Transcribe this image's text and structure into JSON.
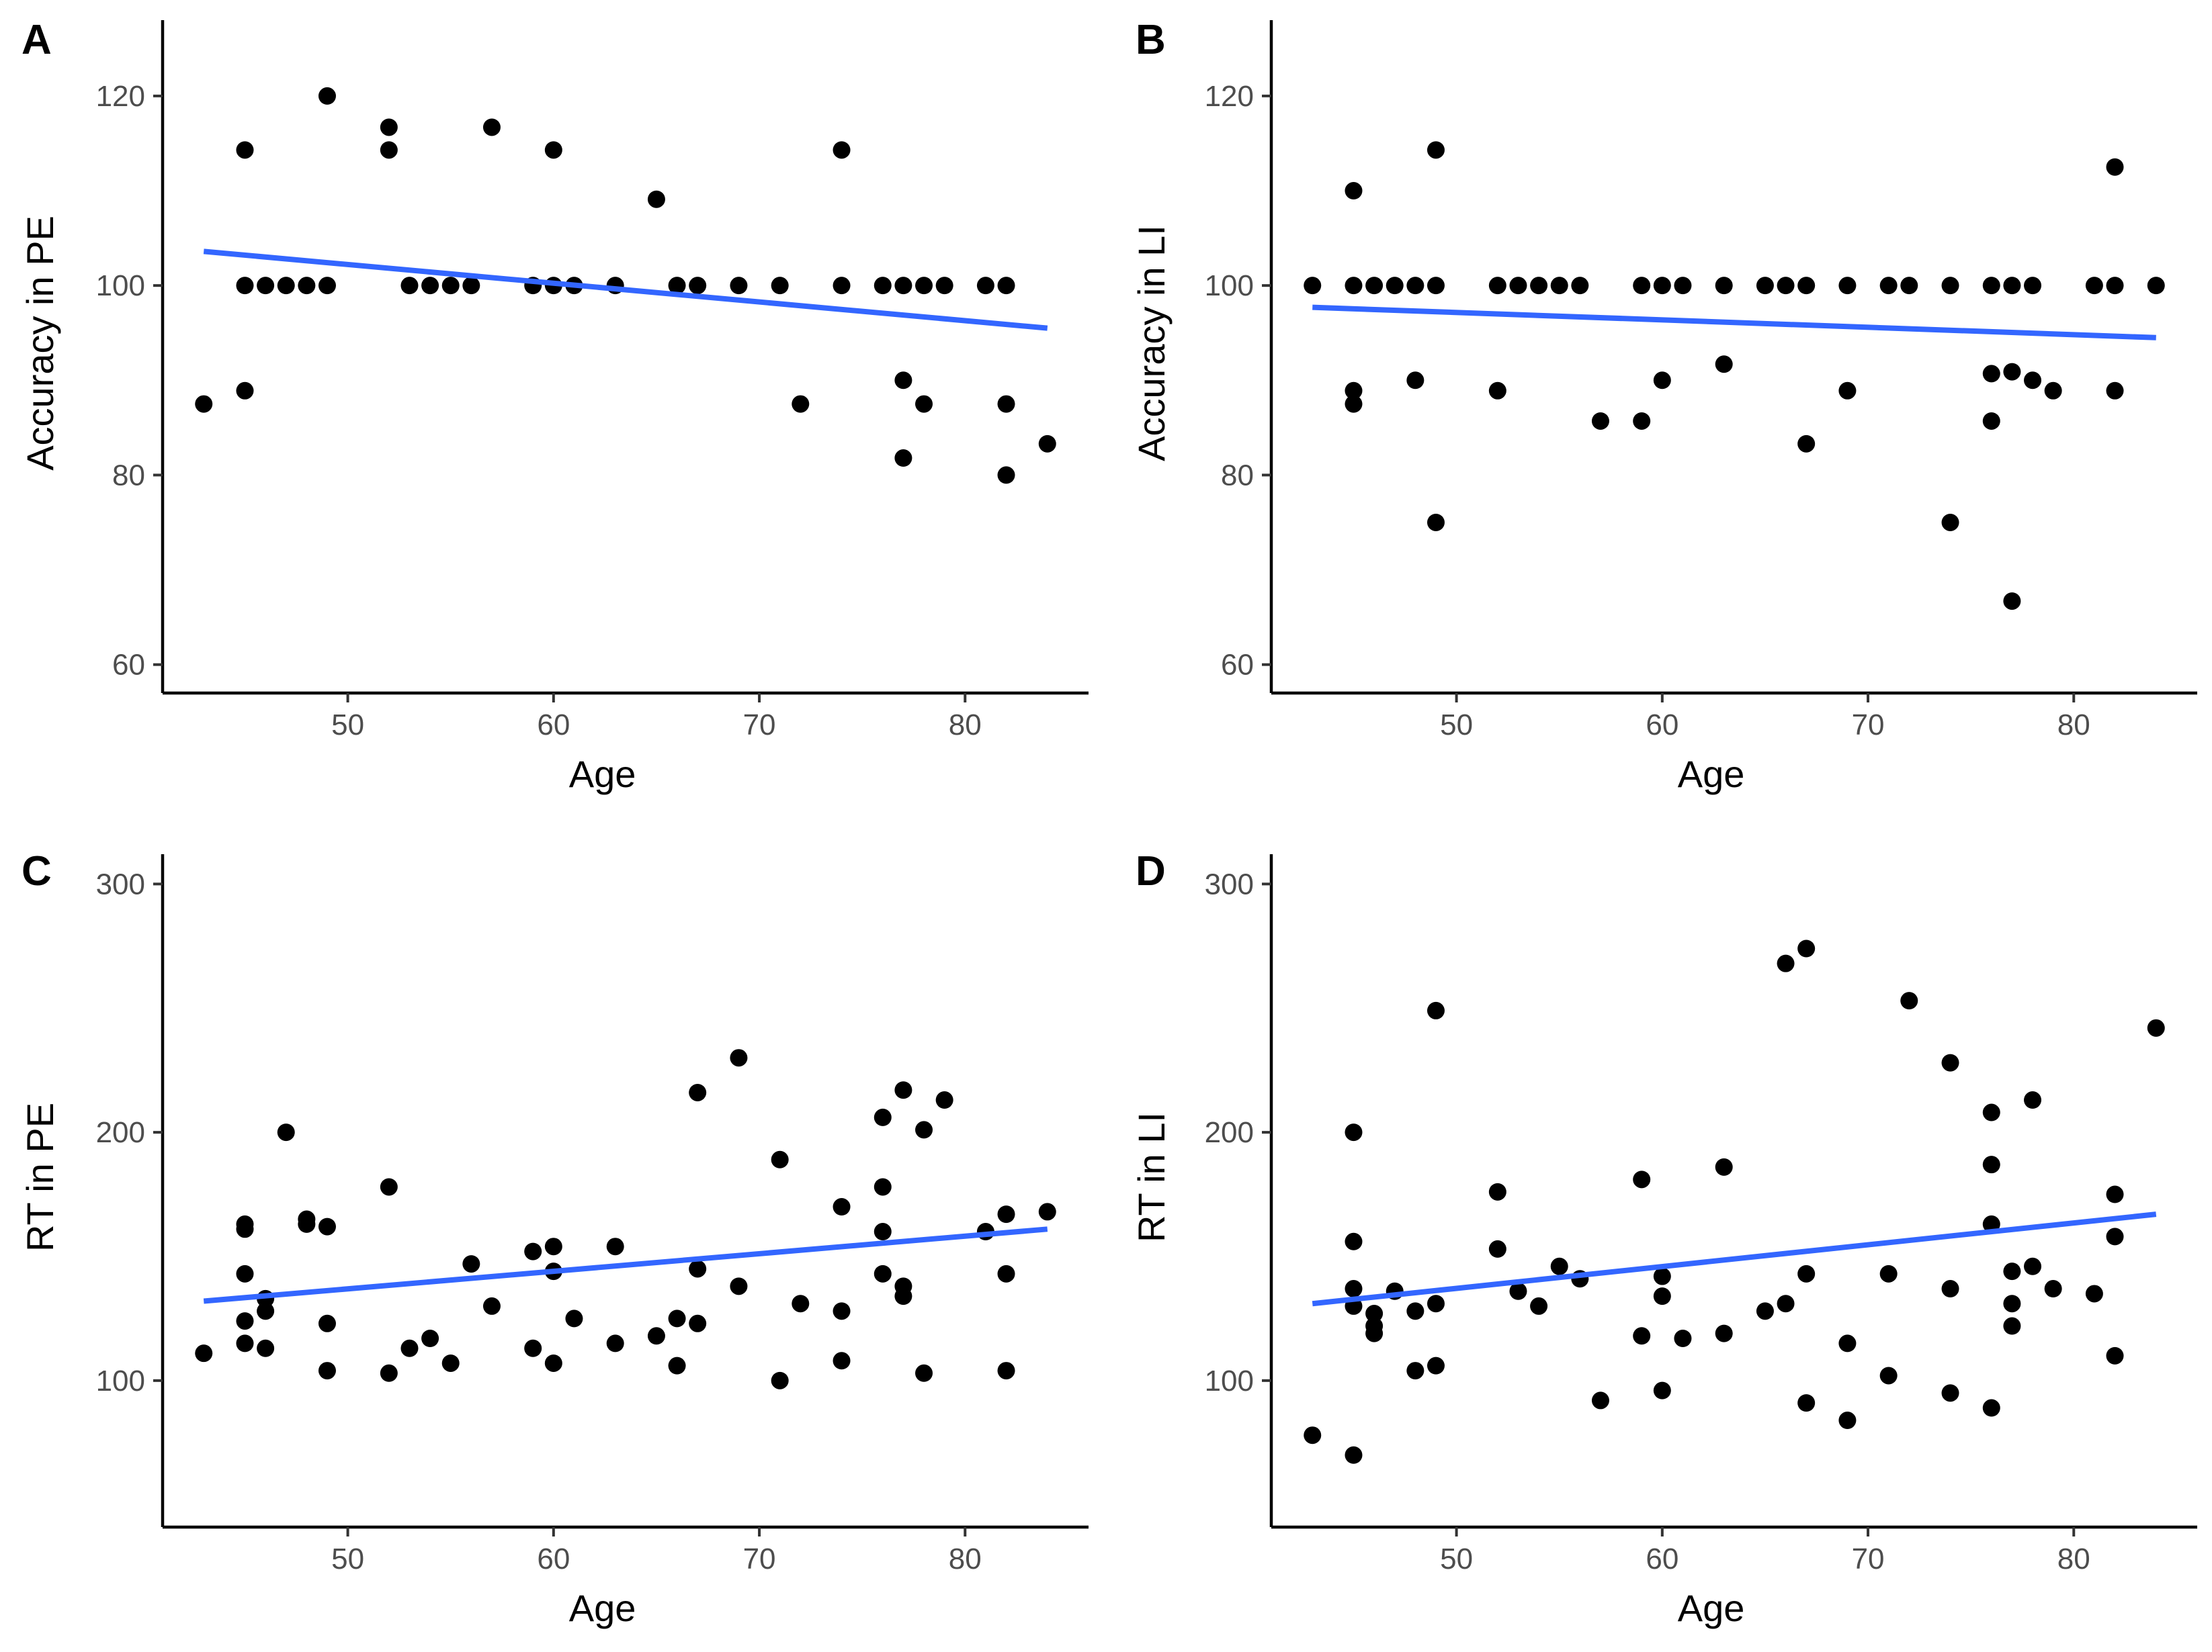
{
  "colors": {
    "point": "#000000",
    "trend": "#3366ff",
    "axis": "#000000",
    "tick_label": "#4d4d4d"
  },
  "chart_data": [
    {
      "type": "scatter",
      "panel_label": "A",
      "xlabel": "Age",
      "ylabel": "Accuracy in PE",
      "xlim": [
        41,
        86
      ],
      "ylim": [
        57,
        128
      ],
      "xticks": [
        50,
        60,
        70,
        80
      ],
      "yticks": [
        60,
        80,
        100,
        120
      ],
      "points": [
        [
          43,
          87.5
        ],
        [
          45,
          114.3
        ],
        [
          45,
          100
        ],
        [
          45,
          88.9
        ],
        [
          46,
          100
        ],
        [
          47,
          100
        ],
        [
          48,
          100
        ],
        [
          49,
          120
        ],
        [
          49,
          100
        ],
        [
          52,
          116.7
        ],
        [
          52,
          114.3
        ],
        [
          53,
          100
        ],
        [
          54,
          100
        ],
        [
          55,
          100
        ],
        [
          56,
          100
        ],
        [
          57,
          116.7
        ],
        [
          59,
          100
        ],
        [
          60,
          114.3
        ],
        [
          60,
          100
        ],
        [
          61,
          100
        ],
        [
          63,
          100
        ],
        [
          65,
          109.1
        ],
        [
          66,
          100
        ],
        [
          67,
          100
        ],
        [
          69,
          100
        ],
        [
          71,
          100
        ],
        [
          72,
          87.5
        ],
        [
          74,
          114.3
        ],
        [
          74,
          100
        ],
        [
          76,
          100
        ],
        [
          77,
          100
        ],
        [
          77,
          90
        ],
        [
          77,
          81.8
        ],
        [
          78,
          100
        ],
        [
          78,
          87.5
        ],
        [
          79,
          100
        ],
        [
          81,
          100
        ],
        [
          82,
          100
        ],
        [
          82,
          87.5
        ],
        [
          82,
          80
        ],
        [
          84,
          83.3
        ]
      ],
      "trend": {
        "x": [
          43,
          84
        ],
        "y": [
          103.6,
          95.5
        ]
      }
    },
    {
      "type": "scatter",
      "panel_label": "B",
      "xlabel": "Age",
      "ylabel": "Accuracy in LI",
      "xlim": [
        41,
        86
      ],
      "ylim": [
        57,
        128
      ],
      "xticks": [
        50,
        60,
        70,
        80
      ],
      "yticks": [
        60,
        80,
        100,
        120
      ],
      "points": [
        [
          43,
          100
        ],
        [
          45,
          110
        ],
        [
          45,
          100
        ],
        [
          45,
          88.9
        ],
        [
          45,
          87.5
        ],
        [
          46,
          100
        ],
        [
          47,
          100
        ],
        [
          48,
          100
        ],
        [
          48,
          90
        ],
        [
          49,
          114.3
        ],
        [
          49,
          100
        ],
        [
          49,
          75
        ],
        [
          52,
          100
        ],
        [
          52,
          88.9
        ],
        [
          53,
          100
        ],
        [
          54,
          100
        ],
        [
          55,
          100
        ],
        [
          56,
          100
        ],
        [
          57,
          85.7
        ],
        [
          59,
          100
        ],
        [
          59,
          85.7
        ],
        [
          60,
          100
        ],
        [
          60,
          90
        ],
        [
          61,
          100
        ],
        [
          63,
          100
        ],
        [
          63,
          91.7
        ],
        [
          65,
          100
        ],
        [
          66,
          100
        ],
        [
          67,
          100
        ],
        [
          67,
          83.3
        ],
        [
          69,
          100
        ],
        [
          69,
          88.9
        ],
        [
          71,
          100
        ],
        [
          72,
          100
        ],
        [
          74,
          100
        ],
        [
          74,
          75
        ],
        [
          76,
          100
        ],
        [
          76,
          90.7
        ],
        [
          76,
          85.7
        ],
        [
          77,
          100
        ],
        [
          77,
          90.9
        ],
        [
          77,
          66.7
        ],
        [
          78,
          100
        ],
        [
          78,
          90
        ],
        [
          79,
          88.9
        ],
        [
          81,
          100
        ],
        [
          82,
          112.5
        ],
        [
          82,
          100
        ],
        [
          82,
          88.9
        ],
        [
          84,
          100
        ]
      ],
      "trend": {
        "x": [
          43,
          84
        ],
        "y": [
          97.7,
          94.5
        ]
      }
    },
    {
      "type": "scatter",
      "panel_label": "C",
      "xlabel": "Age",
      "ylabel": "RT in PE",
      "xlim": [
        41,
        86
      ],
      "ylim": [
        41,
        312
      ],
      "xticks": [
        50,
        60,
        70,
        80
      ],
      "yticks": [
        100,
        200,
        300
      ],
      "points": [
        [
          43,
          111
        ],
        [
          45,
          163
        ],
        [
          45,
          161
        ],
        [
          45,
          143
        ],
        [
          45,
          124
        ],
        [
          45,
          115
        ],
        [
          46,
          133
        ],
        [
          46,
          128
        ],
        [
          46,
          113
        ],
        [
          47,
          200
        ],
        [
          48,
          165
        ],
        [
          48,
          163
        ],
        [
          49,
          162
        ],
        [
          49,
          123
        ],
        [
          49,
          104
        ],
        [
          52,
          178
        ],
        [
          52,
          103
        ],
        [
          53,
          113
        ],
        [
          54,
          117
        ],
        [
          55,
          107
        ],
        [
          56,
          147
        ],
        [
          57,
          130
        ],
        [
          59,
          152
        ],
        [
          59,
          113
        ],
        [
          60,
          154
        ],
        [
          60,
          144
        ],
        [
          60,
          107
        ],
        [
          61,
          125
        ],
        [
          63,
          154
        ],
        [
          63,
          115
        ],
        [
          65,
          118
        ],
        [
          66,
          125
        ],
        [
          66,
          106
        ],
        [
          67,
          216
        ],
        [
          67,
          145
        ],
        [
          67,
          123
        ],
        [
          69,
          230
        ],
        [
          69,
          138
        ],
        [
          71,
          189
        ],
        [
          71,
          100
        ],
        [
          72,
          131
        ],
        [
          74,
          170
        ],
        [
          74,
          128
        ],
        [
          74,
          108
        ],
        [
          76,
          206
        ],
        [
          76,
          178
        ],
        [
          76,
          160
        ],
        [
          76,
          143
        ],
        [
          77,
          217
        ],
        [
          77,
          138
        ],
        [
          77,
          134
        ],
        [
          78,
          201
        ],
        [
          78,
          103
        ],
        [
          79,
          213
        ],
        [
          81,
          160
        ],
        [
          82,
          167
        ],
        [
          82,
          143
        ],
        [
          82,
          104
        ],
        [
          84,
          168
        ]
      ],
      "trend": {
        "x": [
          43,
          84
        ],
        "y": [
          132,
          161
        ]
      }
    },
    {
      "type": "scatter",
      "panel_label": "D",
      "xlabel": "Age",
      "ylabel": "RT in LI",
      "xlim": [
        41,
        86
      ],
      "ylim": [
        41,
        312
      ],
      "xticks": [
        50,
        60,
        70,
        80
      ],
      "yticks": [
        100,
        200,
        300
      ],
      "points": [
        [
          43,
          78
        ],
        [
          45,
          200
        ],
        [
          45,
          156
        ],
        [
          45,
          137
        ],
        [
          45,
          130
        ],
        [
          45,
          70
        ],
        [
          46,
          127
        ],
        [
          46,
          122
        ],
        [
          46,
          119
        ],
        [
          47,
          136
        ],
        [
          48,
          128
        ],
        [
          48,
          104
        ],
        [
          49,
          249
        ],
        [
          49,
          131
        ],
        [
          49,
          106
        ],
        [
          52,
          176
        ],
        [
          52,
          153
        ],
        [
          53,
          136
        ],
        [
          54,
          130
        ],
        [
          55,
          146
        ],
        [
          56,
          141
        ],
        [
          57,
          92
        ],
        [
          59,
          181
        ],
        [
          59,
          118
        ],
        [
          60,
          142
        ],
        [
          60,
          134
        ],
        [
          60,
          96
        ],
        [
          61,
          117
        ],
        [
          63,
          186
        ],
        [
          63,
          119
        ],
        [
          65,
          128
        ],
        [
          66,
          268
        ],
        [
          66,
          131
        ],
        [
          67,
          274
        ],
        [
          67,
          143
        ],
        [
          67,
          91
        ],
        [
          69,
          115
        ],
        [
          69,
          84
        ],
        [
          71,
          143
        ],
        [
          71,
          102
        ],
        [
          72,
          253
        ],
        [
          74,
          228
        ],
        [
          74,
          137
        ],
        [
          74,
          95
        ],
        [
          76,
          208
        ],
        [
          76,
          187
        ],
        [
          76,
          163
        ],
        [
          76,
          89
        ],
        [
          77,
          144
        ],
        [
          77,
          131
        ],
        [
          77,
          122
        ],
        [
          78,
          213
        ],
        [
          78,
          146
        ],
        [
          79,
          137
        ],
        [
          81,
          135
        ],
        [
          82,
          175
        ],
        [
          82,
          158
        ],
        [
          82,
          110
        ],
        [
          84,
          242
        ]
      ],
      "trend": {
        "x": [
          43,
          84
        ],
        "y": [
          131,
          167
        ]
      }
    }
  ]
}
